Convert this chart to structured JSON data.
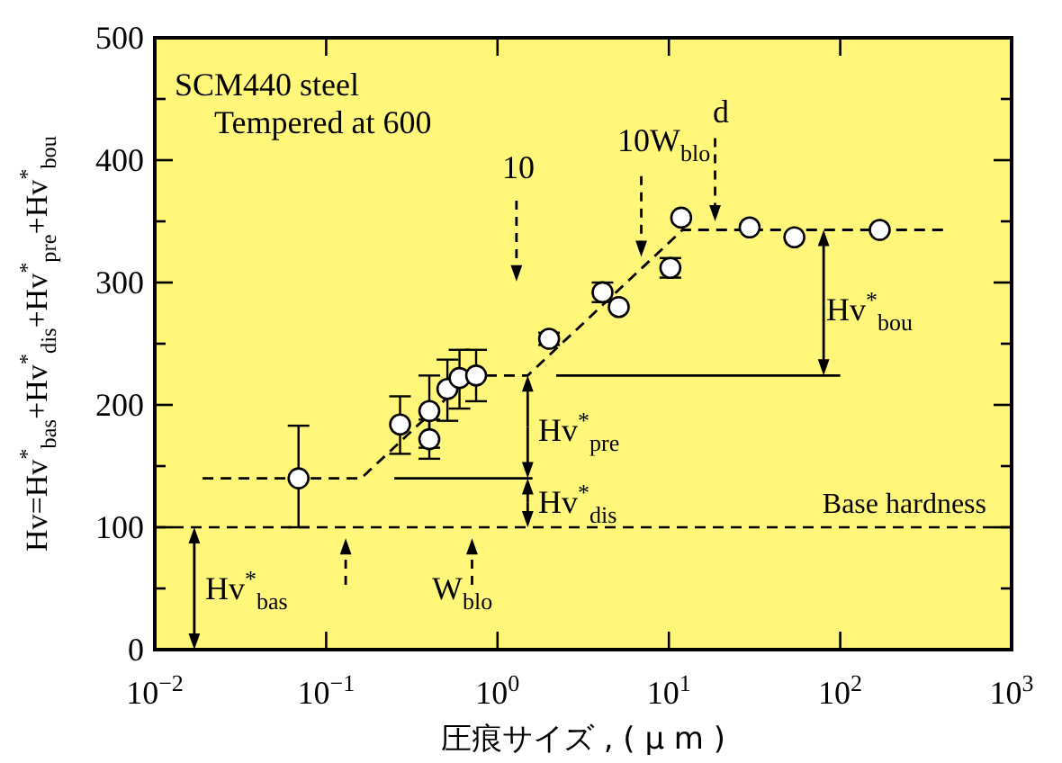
{
  "chart_data": {
    "type": "scatter",
    "xlabel": "圧痕サイズ , ( μ m )",
    "ylabel": "Hv=Hv$^{*}$$_{bas}$+Hv$^{*}$$_{dis}$+Hv$^{*}$$_{pre}$+Hv$^{*}$$_{bou}$",
    "log": "x",
    "grid": false,
    "xlim": [
      0.01,
      1000
    ],
    "xticks": [
      {
        "value": 0.01,
        "label": "10$^{−2}$"
      },
      {
        "value": 0.1,
        "label": "10$^{−1}$"
      },
      {
        "value": 1,
        "label": "10$^{0}$"
      },
      {
        "value": 10,
        "label": "10$^{1}$"
      },
      {
        "value": 100,
        "label": "10$^{2}$"
      },
      {
        "value": 1000,
        "label": "10$^{3}$"
      }
    ],
    "ylim": [
      0,
      500
    ],
    "yticks": [
      0,
      {
        "value": 50,
        "label": null
      },
      100,
      {
        "value": 150,
        "label": null
      },
      200,
      {
        "value": 250,
        "label": null
      },
      300,
      {
        "value": 350,
        "label": null
      },
      400,
      {
        "value": 450,
        "label": null
      },
      500
    ],
    "ref_lines": [
      {
        "axis": "y",
        "value": 100,
        "label": "Base hardness",
        "color": "#000000",
        "line_style": "dashed"
      }
    ],
    "annotations": [
      "SCM440 steel",
      "Tempered at 600",
      "10",
      "10W$_{blo}$",
      "d",
      "Hv$^{*}$$_{bou}$",
      "Hv$^{*}$$_{pre}$",
      "Hv$^{*}$$_{dis}$",
      "Hv$^{*}$$_{bas}$",
      "W$_{blo}$"
    ],
    "series": [
      {
        "type": "line",
        "color": "#000000",
        "line_style": "dashed",
        "x": [
          0.019,
          0.16,
          0.7,
          1.5,
          12,
          400
        ],
        "values": [
          140,
          140,
          224,
          224,
          343,
          343
        ]
      },
      {
        "type": "line",
        "color": "#000000",
        "line_style": "solid",
        "x": [
          0.25,
          1.6
        ],
        "values": [
          140,
          140
        ]
      },
      {
        "type": "line",
        "color": "#000000",
        "line_style": "solid",
        "x": [
          2.2,
          100
        ],
        "values": [
          224,
          224
        ]
      },
      {
        "color": "#ffffff",
        "marker": "circle",
        "x": [
          0.069,
          0.27,
          0.4,
          0.4,
          0.51,
          0.6,
          0.75,
          2.0,
          4.1,
          5.1,
          10.2,
          11.8,
          29.6,
          54,
          170
        ],
        "values": [
          140,
          184,
          195,
          172,
          213,
          222,
          224,
          254,
          292,
          280,
          312,
          353,
          345,
          337,
          343
        ],
        "errors": [
          [
            100,
            183
          ],
          [
            160,
            207
          ],
          [
            165,
            224
          ],
          [
            156,
            188
          ],
          [
            187,
            237
          ],
          [
            197,
            245
          ],
          [
            203,
            245
          ],
          [
            249,
            259
          ],
          [
            284,
            300
          ],
          null,
          [
            304,
            320
          ],
          null,
          null,
          null,
          null
        ]
      }
    ]
  }
}
